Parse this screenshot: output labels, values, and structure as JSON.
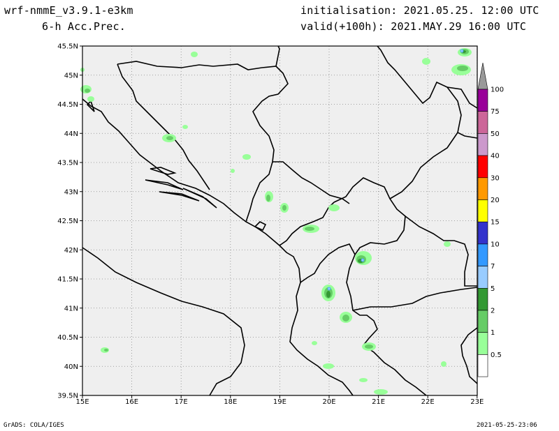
{
  "header": {
    "model": "wrf-nmmE_v3.9.1-e3km",
    "field": "6-h Acc.Prec.",
    "init": "initialisation: 2021.05.25. 12:00 UTC",
    "valid": "valid(+100h): 2021.MAY.29 16:00 UTC"
  },
  "footer": {
    "credit": "GrADS: COLA/IGES",
    "timestamp": "2021-05-25-23:06"
  },
  "map": {
    "lat_labels": [
      "45.5N",
      "45N",
      "44.5N",
      "44N",
      "43.5N",
      "43N",
      "42.5N",
      "42N",
      "41.5N",
      "41N",
      "40.5N",
      "40N",
      "39.5N"
    ],
    "lon_labels": [
      "15E",
      "16E",
      "17E",
      "18E",
      "19E",
      "20E",
      "21E",
      "22E",
      "23E"
    ],
    "land_color": "#efefef",
    "border_color": "#000000",
    "grid_color": "#888888"
  },
  "colorbar": {
    "labels": [
      "100",
      "75",
      "50",
      "40",
      "30",
      "20",
      "15",
      "10",
      "7",
      "5",
      "2",
      "1",
      "0.5"
    ],
    "colors": [
      "#999999",
      "#990099",
      "#cc6699",
      "#cc99cc",
      "#ff0000",
      "#ff9900",
      "#ffff00",
      "#3333cc",
      "#3399ff",
      "#99ccff",
      "#339933",
      "#66cc66",
      "#99ff99",
      "#ffffff"
    ]
  }
}
